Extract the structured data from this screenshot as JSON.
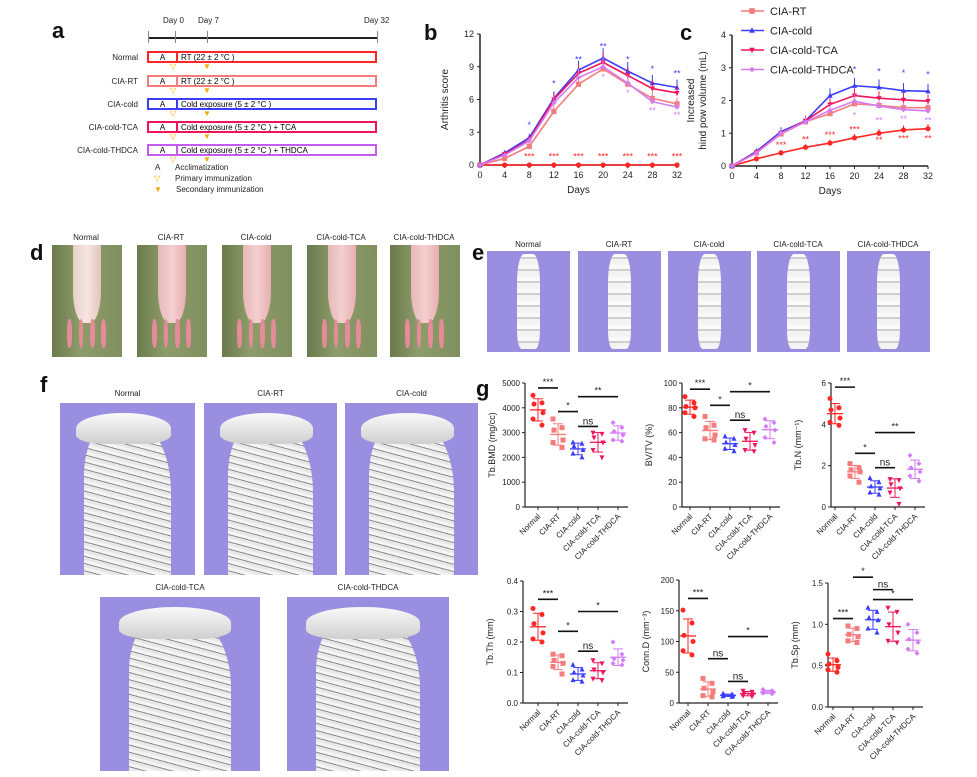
{
  "panels": {
    "a": "a",
    "b": "b",
    "c": "c",
    "d": "d",
    "e": "e",
    "f": "f",
    "g": "g"
  },
  "groups": [
    "Normal",
    "CIA-RT",
    "CIA-cold",
    "CIA-cold-TCA",
    "CIA-cold-THDCA"
  ],
  "colors": {
    "Normal": "#ff2626",
    "CIA-RT": "#f47c7c",
    "CIA-cold": "#3d3dff",
    "CIA-cold-TCA": "#f0145a",
    "CIA-cold-THDCA": "#d27cf5"
  },
  "timeline": {
    "days": [
      "Day 0",
      "Day 7",
      "Day 32"
    ],
    "rows": [
      {
        "group": "Normal",
        "a": "A",
        "text": "RT  (22 ± 2 °C )",
        "color": "#ff2626"
      },
      {
        "group": "CIA-RT",
        "a": "A",
        "text": "RT  (22 ± 2 °C )",
        "color": "#f47c7c"
      },
      {
        "group": "CIA-cold",
        "a": "A",
        "text": "Cold  exposure (5 ± 2 °C )",
        "color": "#3d3dff"
      },
      {
        "group": "CIA-cold-TCA",
        "a": "A",
        "text": "Cold  exposure (5 ± 2 °C ) + TCA",
        "color": "#f0145a"
      },
      {
        "group": "CIA-cold-THDCA",
        "a": "A",
        "text": "Cold  exposure (5 ± 2 °C ) + THDCA",
        "color": "#c45cf0"
      }
    ],
    "legend": [
      {
        "symbol": "A",
        "text": "Acclimatization"
      },
      {
        "symbol": "▽",
        "text": "Primary  immunization"
      },
      {
        "symbol": "▼",
        "text": "Secondary immunization"
      }
    ]
  },
  "photos_d": {
    "labels": [
      "Normal",
      "CIA-RT",
      "CIA-cold",
      "CIA-cold-TCA",
      "CIA-cold-THDCA"
    ]
  },
  "ct_e": {
    "labels": [
      "Normal",
      "CIA-RT",
      "CIA-cold",
      "CIA-cold-TCA",
      "CIA-cold-THDCA"
    ]
  },
  "ct_f": {
    "labels": [
      "Normal",
      "CIA-RT",
      "CIA-cold",
      "CIA-cold-TCA",
      "CIA-cold-THDCA"
    ]
  },
  "chart_data": [
    {
      "id": "b",
      "type": "line",
      "xlabel": "Days",
      "ylabel": "Arthritis score",
      "xlim": [
        0,
        32
      ],
      "ylim": [
        0,
        12
      ],
      "xticks": [
        0,
        4,
        8,
        12,
        16,
        20,
        24,
        28,
        32
      ],
      "yticks": [
        0,
        3,
        6,
        9,
        12
      ],
      "x": [
        0,
        4,
        8,
        12,
        16,
        20,
        24,
        28,
        32
      ],
      "series": [
        {
          "name": "Normal",
          "values": [
            0,
            0,
            0,
            0,
            0,
            0,
            0,
            0,
            0
          ],
          "marker": "circle"
        },
        {
          "name": "CIA-RT",
          "values": [
            0,
            0.6,
            1.7,
            4.9,
            7.4,
            8.8,
            7.4,
            6.1,
            5.6
          ],
          "marker": "square"
        },
        {
          "name": "CIA-cold",
          "values": [
            0,
            1.1,
            2.5,
            6.1,
            8.7,
            9.8,
            8.6,
            7.5,
            7.1
          ],
          "marker": "tri-up"
        },
        {
          "name": "CIA-cold-TCA",
          "values": [
            0,
            1.0,
            2.3,
            6.0,
            8.4,
            9.4,
            8.2,
            7.0,
            6.6
          ],
          "marker": "tri-down"
        },
        {
          "name": "CIA-cold-THDCA",
          "values": [
            0,
            0.9,
            2.2,
            5.7,
            8.0,
            9.0,
            7.5,
            5.8,
            5.3
          ],
          "marker": "diamond"
        }
      ],
      "annotations": [
        {
          "x": 8,
          "y": 3.4,
          "text": "*",
          "group": "CIA-cold"
        },
        {
          "x": 12,
          "y": 7.2,
          "text": "*",
          "group": "CIA-cold"
        },
        {
          "x": 16,
          "y": 9.4,
          "text": "**",
          "group": "CIA-cold"
        },
        {
          "x": 20,
          "y": 10.6,
          "text": "**",
          "group": "CIA-cold"
        },
        {
          "x": 24,
          "y": 9.4,
          "text": "*",
          "group": "CIA-cold"
        },
        {
          "x": 28,
          "y": 8.5,
          "text": "*",
          "group": "CIA-cold"
        },
        {
          "x": 32,
          "y": 8.1,
          "text": "**",
          "group": "CIA-cold"
        },
        {
          "x": 20,
          "y": 7.8,
          "text": "*",
          "group": "CIA-cold-THDCA"
        },
        {
          "x": 24,
          "y": 6.3,
          "text": "*",
          "group": "CIA-cold-THDCA"
        },
        {
          "x": 28,
          "y": 4.7,
          "text": "**",
          "group": "CIA-cold-THDCA"
        },
        {
          "x": 32,
          "y": 4.3,
          "text": "**",
          "group": "CIA-cold-THDCA"
        },
        {
          "x": 8,
          "y": 0.5,
          "text": "***",
          "group": "Normal"
        },
        {
          "x": 12,
          "y": 0.5,
          "text": "***",
          "group": "Normal"
        },
        {
          "x": 16,
          "y": 0.5,
          "text": "***",
          "group": "Normal"
        },
        {
          "x": 20,
          "y": 0.5,
          "text": "***",
          "group": "Normal"
        },
        {
          "x": 24,
          "y": 0.5,
          "text": "***",
          "group": "Normal"
        },
        {
          "x": 28,
          "y": 0.5,
          "text": "***",
          "group": "Normal"
        },
        {
          "x": 32,
          "y": 0.5,
          "text": "***",
          "group": "Normal"
        }
      ]
    },
    {
      "id": "c",
      "type": "line",
      "xlabel": "Days",
      "ylabel": [
        "Increased",
        "hind pow volume (mL)"
      ],
      "xlim": [
        0,
        32
      ],
      "ylim": [
        0,
        4
      ],
      "xticks": [
        0,
        4,
        8,
        12,
        16,
        20,
        24,
        28,
        32
      ],
      "yticks": [
        0,
        1,
        2,
        3,
        4
      ],
      "legend": [
        "CIA-RT",
        "CIA-cold",
        "CIA-cold-TCA",
        "CIA-cold-THDCA"
      ],
      "x": [
        0,
        4,
        8,
        12,
        16,
        20,
        24,
        28,
        32
      ],
      "series": [
        {
          "name": "Normal",
          "values": [
            0,
            0.22,
            0.4,
            0.57,
            0.7,
            0.86,
            1.0,
            1.1,
            1.14
          ],
          "marker": "circle"
        },
        {
          "name": "CIA-RT",
          "values": [
            0,
            0.4,
            0.98,
            1.35,
            1.6,
            1.9,
            1.85,
            1.78,
            1.78
          ],
          "marker": "square"
        },
        {
          "name": "CIA-cold",
          "values": [
            0,
            0.45,
            1.05,
            1.38,
            2.15,
            2.45,
            2.4,
            2.3,
            2.28
          ],
          "marker": "tri-up"
        },
        {
          "name": "CIA-cold-TCA",
          "values": [
            0,
            0.42,
            1.0,
            1.38,
            1.88,
            2.15,
            2.07,
            2.02,
            1.98
          ],
          "marker": "tri-down"
        },
        {
          "name": "CIA-cold-THDCA",
          "values": [
            0,
            0.4,
            1.0,
            1.35,
            1.7,
            1.98,
            1.83,
            1.72,
            1.68
          ],
          "marker": "diamond"
        }
      ],
      "annotations": [
        {
          "x": 20,
          "y": 2.85,
          "text": "*",
          "group": "CIA-cold"
        },
        {
          "x": 24,
          "y": 2.8,
          "text": "*",
          "group": "CIA-cold"
        },
        {
          "x": 28,
          "y": 2.75,
          "text": "*",
          "group": "CIA-cold"
        },
        {
          "x": 32,
          "y": 2.7,
          "text": "*",
          "group": "CIA-cold"
        },
        {
          "x": 20,
          "y": 1.45,
          "text": "*",
          "group": "CIA-cold-THDCA"
        },
        {
          "x": 24,
          "y": 1.3,
          "text": "**",
          "group": "CIA-cold-THDCA"
        },
        {
          "x": 28,
          "y": 1.35,
          "text": "**",
          "group": "CIA-cold-THDCA"
        },
        {
          "x": 32,
          "y": 1.3,
          "text": "**",
          "group": "CIA-cold-THDCA"
        },
        {
          "x": 8,
          "y": 0.55,
          "text": "***",
          "group": "Normal"
        },
        {
          "x": 12,
          "y": 0.72,
          "text": "**",
          "group": "Normal"
        },
        {
          "x": 16,
          "y": 0.85,
          "text": "***",
          "group": "Normal"
        },
        {
          "x": 20,
          "y": 1.02,
          "text": "***",
          "group": "Normal"
        },
        {
          "x": 24,
          "y": 0.7,
          "text": "**",
          "group": "Normal"
        },
        {
          "x": 28,
          "y": 0.75,
          "text": "***",
          "group": "Normal"
        },
        {
          "x": 32,
          "y": 0.75,
          "text": "**",
          "group": "Normal"
        }
      ]
    },
    {
      "id": "g1",
      "type": "scatter",
      "ylabel": "Tb.BMD (mg/cc)",
      "ylim": [
        0,
        5000
      ],
      "yticks": [
        0,
        1000,
        2000,
        3000,
        4000,
        5000
      ],
      "points": [
        [
          4500,
          4200,
          4150,
          3800,
          3550,
          3300
        ],
        [
          3550,
          3200,
          3100,
          2700,
          2600,
          2400
        ],
        [
          2600,
          2550,
          2450,
          2300,
          2150,
          2000
        ],
        [
          3000,
          2950,
          2800,
          2600,
          2300,
          2000
        ],
        [
          3400,
          3200,
          3050,
          2900,
          2700,
          2650
        ]
      ],
      "sig": [
        {
          "from": 0,
          "to": 1,
          "y": 4800,
          "label": "***"
        },
        {
          "from": 1,
          "to": 2,
          "y": 3850,
          "label": "*"
        },
        {
          "from": 2,
          "to": 3,
          "y": 3250,
          "label": "ns"
        },
        {
          "from": 2,
          "to": 4,
          "y": 4450,
          "label": "**"
        }
      ]
    },
    {
      "id": "g2",
      "type": "scatter",
      "ylabel": "BV/TV (%)",
      "ylim": [
        0,
        100
      ],
      "yticks": [
        0,
        20,
        40,
        60,
        80,
        100
      ],
      "points": [
        [
          89,
          84,
          81,
          80,
          76,
          73
        ],
        [
          73,
          66,
          64,
          58,
          55,
          54
        ],
        [
          57,
          55,
          52,
          50,
          47,
          45
        ],
        [
          62,
          60,
          55,
          50,
          46,
          45
        ],
        [
          71,
          68,
          65,
          62,
          56,
          52
        ]
      ],
      "sig": [
        {
          "from": 0,
          "to": 1,
          "y": 95,
          "label": "***"
        },
        {
          "from": 1,
          "to": 2,
          "y": 82,
          "label": "*"
        },
        {
          "from": 2,
          "to": 3,
          "y": 70,
          "label": "ns"
        },
        {
          "from": 2,
          "to": 4,
          "y": 93,
          "label": "*"
        }
      ]
    },
    {
      "id": "g3",
      "type": "scatter",
      "ylabel": "Tb.N (mm⁻¹)",
      "ylim": [
        0,
        6
      ],
      "yticks": [
        0,
        2,
        4,
        6
      ],
      "points": [
        [
          5.25,
          4.8,
          4.7,
          4.3,
          4.1,
          3.95
        ],
        [
          2.1,
          1.9,
          1.8,
          1.7,
          1.5,
          1.2
        ],
        [
          1.4,
          1.2,
          1.0,
          0.9,
          0.7,
          0.6
        ],
        [
          1.35,
          1.3,
          1.1,
          0.9,
          0.7,
          0.15
        ],
        [
          2.5,
          2.1,
          1.9,
          1.7,
          1.5,
          1.25
        ]
      ],
      "sig": [
        {
          "from": 0,
          "to": 1,
          "y": 5.8,
          "label": "***"
        },
        {
          "from": 1,
          "to": 2,
          "y": 2.6,
          "label": "*"
        },
        {
          "from": 2,
          "to": 3,
          "y": 1.9,
          "label": "ns"
        },
        {
          "from": 2,
          "to": 4,
          "y": 3.6,
          "label": "**"
        }
      ]
    },
    {
      "id": "g4",
      "type": "scatter",
      "ylabel": "Tb.Th (mm)",
      "ylim": [
        0,
        0.4
      ],
      "yticks": [
        0.0,
        0.1,
        0.2,
        0.3,
        0.4
      ],
      "tickfmt": 1,
      "points": [
        [
          0.31,
          0.29,
          0.26,
          0.23,
          0.21,
          0.2
        ],
        [
          0.16,
          0.155,
          0.14,
          0.13,
          0.12,
          0.095
        ],
        [
          0.125,
          0.11,
          0.1,
          0.09,
          0.075,
          0.07
        ],
        [
          0.14,
          0.13,
          0.11,
          0.1,
          0.08,
          0.075
        ],
        [
          0.2,
          0.16,
          0.145,
          0.14,
          0.13,
          0.125
        ]
      ],
      "sig": [
        {
          "from": 0,
          "to": 1,
          "y": 0.34,
          "label": "***"
        },
        {
          "from": 1,
          "to": 2,
          "y": 0.235,
          "label": "*"
        },
        {
          "from": 2,
          "to": 3,
          "y": 0.17,
          "label": "ns"
        },
        {
          "from": 2,
          "to": 4,
          "y": 0.3,
          "label": "*"
        }
      ]
    },
    {
      "id": "g5",
      "type": "scatter",
      "ylabel": "Conn.D (mm⁻³)",
      "ylim": [
        0,
        200
      ],
      "yticks": [
        0,
        50,
        100,
        150,
        200
      ],
      "points": [
        [
          151,
          130,
          110,
          100,
          85,
          78
        ],
        [
          40,
          32,
          24,
          18,
          12,
          10
        ],
        [
          15,
          14,
          13,
          12,
          11,
          10
        ],
        [
          20,
          18,
          16,
          14,
          12,
          11
        ],
        [
          22,
          20,
          18,
          17,
          16,
          15
        ]
      ],
      "sig": [
        {
          "from": 0,
          "to": 1,
          "y": 170,
          "label": "***"
        },
        {
          "from": 1,
          "to": 2,
          "y": 72,
          "label": "ns"
        },
        {
          "from": 2,
          "to": 3,
          "y": 35,
          "label": "ns"
        },
        {
          "from": 2,
          "to": 4,
          "y": 108,
          "label": "*"
        }
      ]
    },
    {
      "id": "g6",
      "type": "scatter",
      "ylabel": "Tb.Sp (mm)",
      "ylim": [
        0,
        1.5
      ],
      "yticks": [
        0.0,
        0.5,
        1.0,
        1.5
      ],
      "tickfmt": 1,
      "points": [
        [
          0.64,
          0.56,
          0.52,
          0.48,
          0.45,
          0.42
        ],
        [
          0.98,
          0.95,
          0.88,
          0.85,
          0.8,
          0.78
        ],
        [
          1.2,
          1.15,
          1.08,
          1.05,
          0.95,
          0.9
        ],
        [
          1.2,
          1.15,
          1.0,
          0.9,
          0.8,
          0.78
        ],
        [
          1.0,
          0.9,
          0.82,
          0.78,
          0.7,
          0.65
        ]
      ],
      "sig": [
        {
          "from": 0,
          "to": 1,
          "y": 1.07,
          "label": "***"
        },
        {
          "from": 1,
          "to": 2,
          "y": 1.57,
          "label": "*"
        },
        {
          "from": 2,
          "to": 3,
          "y": 1.42,
          "label": "ns"
        },
        {
          "from": 2,
          "to": 4,
          "y": 1.3,
          "label": "*"
        }
      ]
    }
  ]
}
